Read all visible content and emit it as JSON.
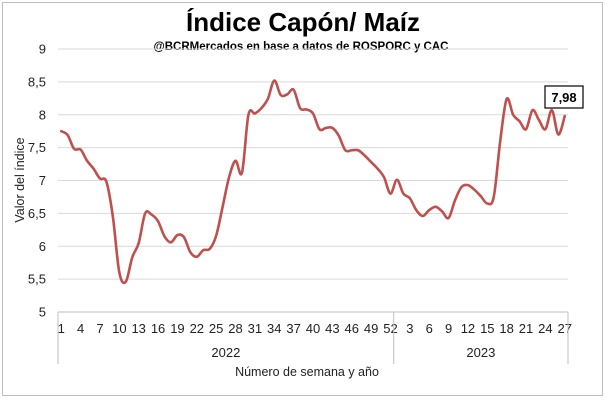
{
  "chart_data": {
    "type": "line",
    "title": "Índice Capón/ Maíz",
    "subtitle": "@BCRMercados  en base a datos de ROSPORC y CAC",
    "xlabel": "Número de semana y año",
    "ylabel": "Valor del índice",
    "ylim": [
      5,
      9
    ],
    "yticks": [
      "5",
      "5,5",
      "6",
      "6,5",
      "7",
      "7,5",
      "8",
      "8,5",
      "9"
    ],
    "grid": "horizontal",
    "line_color": "#c0504d",
    "callout": "7,98",
    "groups": [
      {
        "label": "2022",
        "tick_labels": [
          "1",
          "4",
          "7",
          "10",
          "13",
          "16",
          "19",
          "22",
          "25",
          "28",
          "31",
          "34",
          "37",
          "40",
          "43",
          "46",
          "49",
          "52"
        ]
      },
      {
        "label": "2023",
        "tick_labels": [
          "3",
          "6",
          "9",
          "12",
          "15",
          "18",
          "21",
          "24",
          "27"
        ]
      }
    ],
    "series": [
      {
        "x_2022": [
          1,
          2,
          3,
          4,
          5,
          6,
          7,
          8,
          9,
          10,
          11,
          12,
          13,
          14,
          15,
          16,
          17,
          18,
          19,
          20,
          21,
          22,
          23,
          24,
          25,
          26,
          27,
          28,
          29,
          30,
          31,
          32,
          33,
          34,
          35,
          36,
          37,
          38,
          39,
          40,
          41,
          42,
          43,
          44,
          45,
          46,
          47,
          48,
          49,
          50,
          51,
          52
        ],
        "values_2022": [
          7.75,
          7.69,
          7.48,
          7.47,
          7.3,
          7.18,
          7.03,
          6.98,
          6.45,
          5.6,
          5.46,
          5.83,
          6.05,
          6.5,
          6.48,
          6.38,
          6.15,
          6.06,
          6.17,
          6.14,
          5.91,
          5.84,
          5.94,
          5.96,
          6.16,
          6.6,
          7.05,
          7.3,
          7.12,
          8.0,
          8.02,
          8.1,
          8.24,
          8.52,
          8.3,
          8.31,
          8.38,
          8.1,
          8.08,
          8.02,
          7.78,
          7.8,
          7.8,
          7.68,
          7.46,
          7.46,
          7.46,
          7.38,
          7.28,
          7.18,
          7.05,
          6.8
        ],
        "x_2023": [
          1,
          2,
          3,
          4,
          5,
          6,
          7,
          8,
          9,
          10,
          11,
          12,
          13,
          14,
          15,
          16,
          17,
          18,
          19,
          20,
          21,
          22,
          23,
          24,
          25,
          26,
          27
        ],
        "values_2023": [
          7.01,
          6.8,
          6.73,
          6.55,
          6.46,
          6.55,
          6.6,
          6.53,
          6.43,
          6.7,
          6.9,
          6.93,
          6.86,
          6.76,
          6.65,
          6.75,
          7.6,
          8.24,
          8.0,
          7.9,
          7.78,
          8.07,
          7.92,
          7.78,
          8.07,
          7.7,
          7.98
        ]
      }
    ]
  }
}
